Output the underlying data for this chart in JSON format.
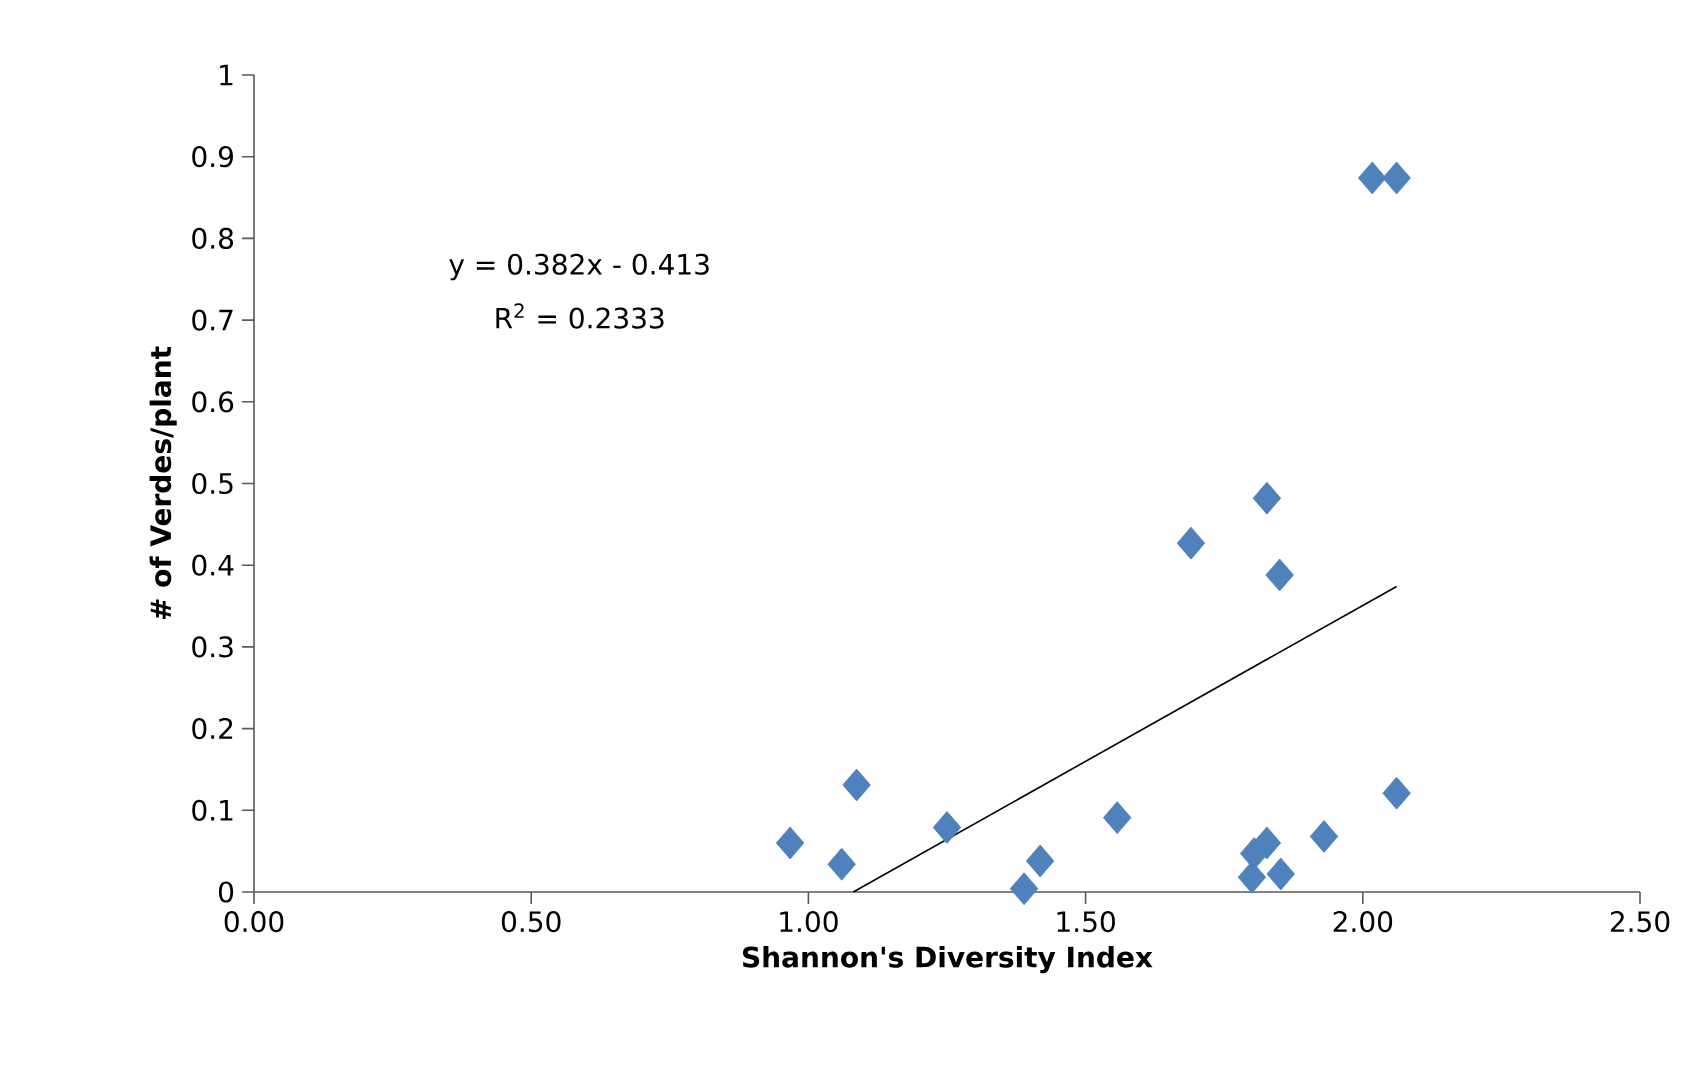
{
  "chart_data": {
    "type": "scatter",
    "xlabel": "Shannon's Diversity Index",
    "ylabel": "# of Verdes/plant",
    "xlim": [
      0,
      2.5
    ],
    "ylim": [
      0,
      1
    ],
    "xticks": [
      {
        "value": 0,
        "label": "0.00"
      },
      {
        "value": 0.5,
        "label": "0.50"
      },
      {
        "value": 1,
        "label": "1.00"
      },
      {
        "value": 1.5,
        "label": "1.50"
      },
      {
        "value": 2,
        "label": "2.00"
      },
      {
        "value": 2.5,
        "label": "2.50"
      }
    ],
    "yticks": [
      0,
      0.1,
      0.2,
      0.3,
      0.4,
      0.5,
      0.6,
      0.7,
      0.8,
      0.9,
      1
    ],
    "grid": false,
    "annotations": [
      "y = 0.382x - 0.413",
      "R$^{2}$ = 0.2333"
    ],
    "series": [
      {
        "marker": "diamond",
        "color": "#4f81bd",
        "x": [
          0.967,
          1.06,
          1.087,
          1.25,
          1.389,
          1.418,
          1.557,
          1.69,
          1.804,
          1.8,
          1.827,
          1.827,
          1.85,
          1.852,
          1.93,
          2.017,
          2.061,
          2.061
        ],
        "values": [
          0.06,
          0.034,
          0.131,
          0.079,
          0.004,
          0.038,
          0.091,
          0.427,
          0.047,
          0.018,
          0.06,
          0.482,
          0.388,
          0.022,
          0.068,
          0.874,
          0.874,
          0.121
        ]
      },
      {
        "type": "line",
        "marker": "none",
        "color": "#000000",
        "x": [
          1.081,
          2.061
        ],
        "values": [
          0,
          0.374
        ]
      }
    ]
  }
}
